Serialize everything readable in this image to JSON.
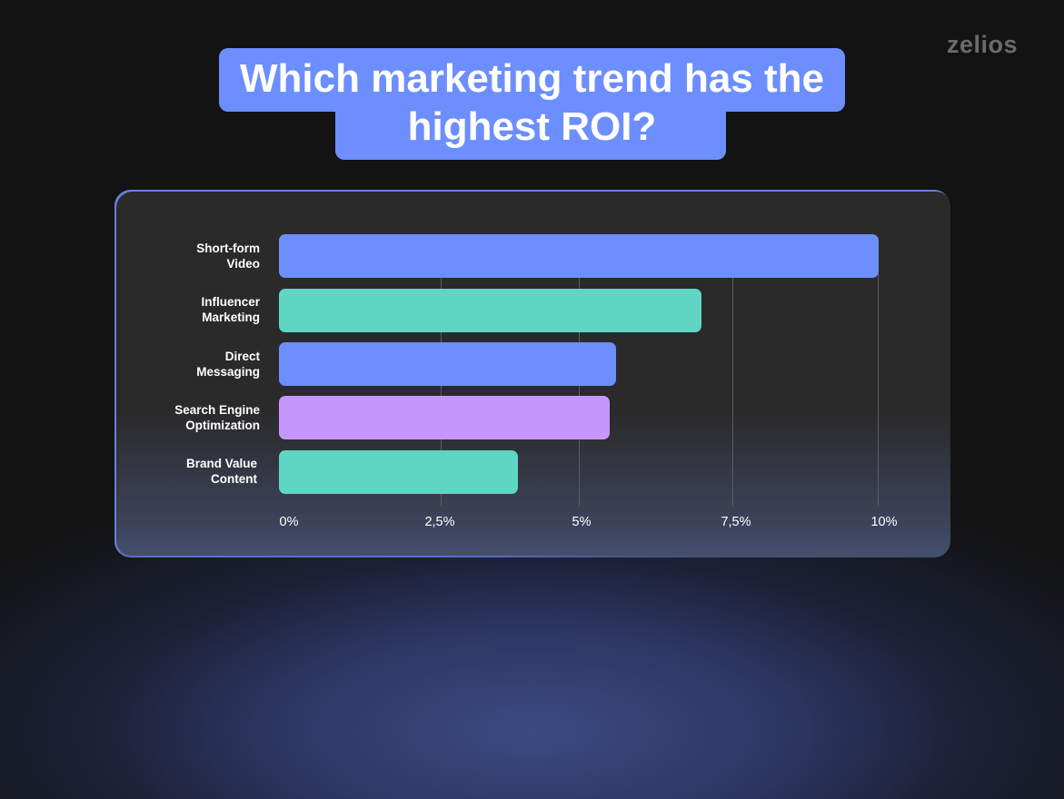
{
  "brand": {
    "logo": "zelios"
  },
  "header": {
    "title": "Which marketing trend has the highest ROI?"
  },
  "colors": {
    "blue": "#6c8efe",
    "teal": "#5fd6c4",
    "purple": "#c597fd",
    "background": "#131313",
    "card": "#2a2a2a"
  },
  "chart_data": {
    "type": "bar",
    "orientation": "horizontal",
    "title": "Which marketing trend has the highest ROI?",
    "xlabel": "",
    "ylabel": "",
    "categories": [
      "Short-form Video",
      "Influencer Marketing",
      "Direct Messaging",
      "Search Engine Optimization",
      "Brand Value Content"
    ],
    "values": [
      10,
      7,
      5.6,
      5.5,
      3.9
    ],
    "unit": "%",
    "bar_colors": [
      "#6c8efe",
      "#5fd6c4",
      "#6c8efe",
      "#c597fd",
      "#5fd6c4"
    ],
    "xlim": [
      0,
      10
    ],
    "xticks": [
      "0%",
      "2,5%",
      "5%",
      "7,5%",
      "10%"
    ],
    "grid": "vertical",
    "legend": null
  },
  "labels": [
    {
      "line1": "Short-form",
      "line2": "Video"
    },
    {
      "line1": "Influencer",
      "line2": "Marketing"
    },
    {
      "line1": "Direct",
      "line2": "Messaging"
    },
    {
      "line1": "Search Engine",
      "line2": "Optimization"
    },
    {
      "line1": "Brand Value",
      "line2": "Content"
    }
  ]
}
